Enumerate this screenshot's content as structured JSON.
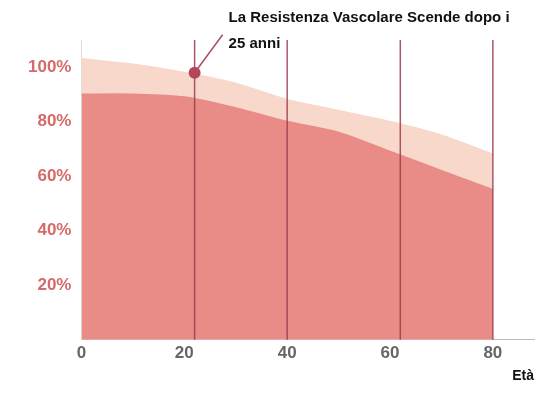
{
  "chart_data": {
    "type": "area",
    "x": [
      0,
      10,
      20,
      30,
      40,
      50,
      60,
      70,
      80
    ],
    "series": [
      {
        "color": "#e98b86",
        "values": [
          90,
          90,
          89,
          85,
          80,
          76,
          69,
          62,
          55
        ]
      },
      {
        "color": "#f7d8ca",
        "values": [
          103,
          101,
          98,
          94,
          88,
          84,
          80,
          75,
          68
        ]
      }
    ],
    "xlim": [
      0,
      88
    ],
    "xticks": [
      0,
      20,
      40,
      60,
      80
    ],
    "ylim": [
      0,
      110
    ],
    "yticks": [
      {
        "value": 20,
        "label": "20%"
      },
      {
        "value": 40,
        "label": "40%"
      },
      {
        "value": 60,
        "label": "60%"
      },
      {
        "value": 80,
        "label": "80%"
      },
      {
        "value": 100,
        "label": "100%"
      }
    ],
    "xlabel": "Età",
    "vlines": [
      22,
      40,
      62,
      80
    ],
    "annotations": [
      {
        "text": "La Resistenza Vascolare Scende dopo i 25 anni",
        "x": 22,
        "y": 98
      }
    ],
    "grid": false
  }
}
